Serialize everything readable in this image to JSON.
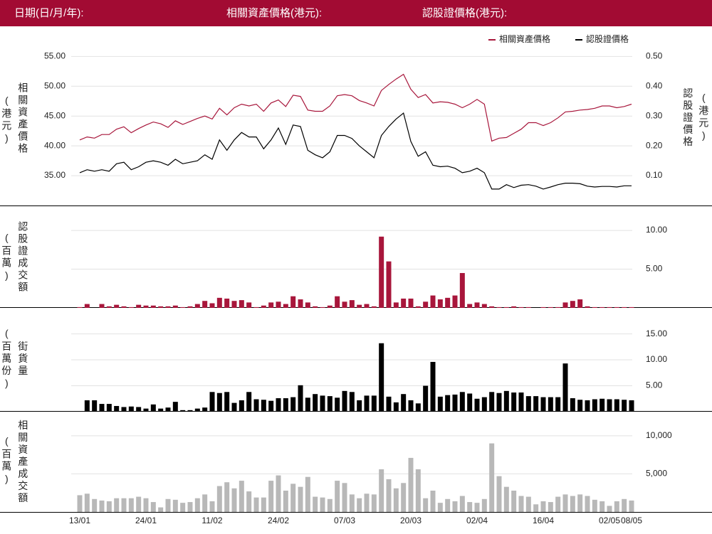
{
  "header": [
    "日期(日/月/年):",
    "相關資產價格(港元):",
    "認股證價格(港元):"
  ],
  "chart_data": [
    {
      "type": "line",
      "grid": true,
      "legend": "top-right",
      "ylabel": "相關資產價格",
      "ylabel_unit": "(港元)",
      "y2label": "認股證價格",
      "y2label_unit": "(港元)",
      "ylim": [
        30,
        56
      ],
      "yticks": [
        {
          "value": 35,
          "label": "35.00"
        },
        {
          "value": 40,
          "label": "40.00"
        },
        {
          "value": 45,
          "label": "45.00"
        },
        {
          "value": 50,
          "label": "50.00"
        },
        {
          "value": 55,
          "label": "55.00"
        }
      ],
      "y2lim": [
        0,
        0.52
      ],
      "y2ticks": [
        {
          "value": 0.1,
          "label": "0.10"
        },
        {
          "value": 0.2,
          "label": "0.20"
        },
        {
          "value": 0.3,
          "label": "0.30"
        },
        {
          "value": 0.4,
          "label": "0.40"
        },
        {
          "value": 0.5,
          "label": "0.50"
        }
      ],
      "series": [
        {
          "name": "相關資產價格",
          "color": "#a8173c",
          "values": [
            41.0,
            41.5,
            41.3,
            41.9,
            41.9,
            42.8,
            43.2,
            42.2,
            42.9,
            43.5,
            44.0,
            43.7,
            43.1,
            44.2,
            43.6,
            44.1,
            44.6,
            45.0,
            44.5,
            46.3,
            45.2,
            46.4,
            47.0,
            46.7,
            47.0,
            45.8,
            47.2,
            47.7,
            46.6,
            48.5,
            48.3,
            46.0,
            45.8,
            45.8,
            46.7,
            48.4,
            48.6,
            48.4,
            47.6,
            47.2,
            46.7,
            49.3,
            50.3,
            51.2,
            52.0,
            49.5,
            48.1,
            48.6,
            47.2,
            47.4,
            47.3,
            47.0,
            46.4,
            47.0,
            47.8,
            47.0,
            40.8,
            41.3,
            41.4,
            42.1,
            42.8,
            43.9,
            43.9,
            43.4,
            43.9,
            44.7,
            45.7,
            45.8,
            46.0,
            46.1,
            46.3,
            46.7,
            46.7,
            46.4,
            46.6,
            47.0
          ]
        },
        {
          "name": "認股證價格",
          "color": "#000000",
          "axis": "y2",
          "values": [
            0.11,
            0.12,
            0.115,
            0.12,
            0.115,
            0.14,
            0.145,
            0.12,
            0.13,
            0.145,
            0.15,
            0.145,
            0.135,
            0.155,
            0.14,
            0.145,
            0.15,
            0.17,
            0.155,
            0.22,
            0.185,
            0.22,
            0.245,
            0.23,
            0.23,
            0.19,
            0.22,
            0.26,
            0.205,
            0.27,
            0.265,
            0.185,
            0.17,
            0.16,
            0.18,
            0.235,
            0.235,
            0.225,
            0.2,
            0.18,
            0.16,
            0.235,
            0.265,
            0.29,
            0.31,
            0.215,
            0.165,
            0.18,
            0.135,
            0.13,
            0.132,
            0.125,
            0.11,
            0.115,
            0.125,
            0.11,
            0.055,
            0.055,
            0.07,
            0.06,
            0.068,
            0.07,
            0.065,
            0.055,
            0.062,
            0.07,
            0.075,
            0.075,
            0.073,
            0.065,
            0.062,
            0.064,
            0.064,
            0.062,
            0.066,
            0.066
          ]
        }
      ]
    },
    {
      "type": "bar",
      "grid": true,
      "color": "#a8163b",
      "ylabel": "認股證成交額",
      "ylabel_unit": "(百萬)",
      "ylim": [
        0,
        11.2
      ],
      "yticks": [
        {
          "value": 5,
          "label": "5.00"
        },
        {
          "value": 10,
          "label": "10.00"
        }
      ],
      "values": [
        0.1,
        0.5,
        0,
        0.5,
        0.2,
        0.4,
        0.2,
        0.1,
        0.4,
        0.3,
        0.3,
        0.2,
        0.2,
        0.3,
        0.1,
        0.2,
        0.5,
        0.9,
        0.6,
        1.3,
        1.2,
        0.9,
        1.0,
        0.7,
        0.1,
        0.3,
        0.7,
        0.8,
        0.5,
        1.5,
        1.1,
        0.7,
        0.2,
        0.1,
        0.3,
        1.5,
        0.8,
        1.0,
        0.4,
        0.5,
        0.2,
        9.2,
        6.0,
        0.7,
        1.2,
        1.2,
        0.2,
        0.8,
        1.6,
        1.1,
        1.3,
        1.6,
        4.5,
        0.5,
        0.7,
        0.5,
        0.2,
        0.1,
        0.1,
        0.2,
        0.1,
        0.1,
        0,
        0.1,
        0.1,
        0.1,
        0.7,
        0.9,
        1.1,
        0.2,
        0.1,
        0.1,
        0.1,
        0.1,
        0.1,
        0.1
      ]
    },
    {
      "type": "bar",
      "grid": true,
      "color": "#000000",
      "ylabel": "街貨量",
      "ylabel_unit": "(百萬份)",
      "ylim": [
        0,
        17
      ],
      "yticks": [
        {
          "value": 5,
          "label": "5.00"
        },
        {
          "value": 10,
          "label": "10.00"
        },
        {
          "value": 15,
          "label": "15.00"
        }
      ],
      "values": [
        0,
        2.2,
        2.2,
        1.5,
        1.5,
        1.1,
        0.9,
        1.0,
        0.9,
        0.6,
        1.4,
        0.6,
        0.8,
        1.9,
        0.3,
        0.3,
        0.6,
        0.8,
        3.8,
        3.6,
        3.8,
        1.7,
        2.2,
        3.8,
        2.4,
        2.3,
        2.1,
        2.6,
        2.6,
        2.8,
        5.1,
        2.7,
        3.4,
        3.1,
        3.0,
        2.7,
        4.0,
        3.8,
        2.2,
        3.1,
        3.1,
        13.2,
        2.9,
        1.8,
        3.4,
        2.2,
        1.6,
        5.0,
        9.6,
        2.9,
        3.2,
        3.3,
        3.8,
        3.5,
        2.5,
        2.8,
        3.8,
        3.6,
        4.0,
        3.7,
        3.7,
        3.0,
        3.0,
        2.8,
        2.8,
        2.8,
        9.3,
        2.6,
        2.3,
        2.2,
        2.4,
        2.5,
        2.4,
        2.4,
        2.3,
        2.2
      ]
    },
    {
      "type": "bar",
      "grid": true,
      "color": "#b8b8b8",
      "ylabel": "相關資產成交額",
      "ylabel_unit": "(百萬)",
      "ylim": [
        0,
        11200
      ],
      "yticks": [
        {
          "value": 5000,
          "label": "5,000"
        },
        {
          "value": 10000,
          "label": "10,000"
        }
      ],
      "categories": [
        "13/01",
        null,
        null,
        null,
        null,
        null,
        null,
        null,
        null,
        "24/01",
        null,
        null,
        null,
        null,
        null,
        null,
        null,
        null,
        "11/02",
        null,
        null,
        null,
        null,
        null,
        null,
        null,
        null,
        "24/02",
        null,
        null,
        null,
        null,
        null,
        null,
        null,
        null,
        "07/03",
        null,
        null,
        null,
        null,
        null,
        null,
        null,
        null,
        "20/03",
        null,
        null,
        null,
        null,
        null,
        null,
        null,
        null,
        "02/04",
        null,
        null,
        null,
        null,
        null,
        null,
        null,
        null,
        "16/04",
        null,
        null,
        null,
        null,
        null,
        null,
        null,
        null,
        "02/05",
        null,
        null,
        "08/05"
      ],
      "values": [
        2200,
        2400,
        1700,
        1500,
        1400,
        1800,
        1800,
        1800,
        2000,
        1800,
        1300,
        600,
        1700,
        1600,
        1200,
        1300,
        1800,
        2300,
        1400,
        3400,
        3900,
        3100,
        4100,
        2700,
        1900,
        1900,
        4100,
        4800,
        2800,
        3700,
        3300,
        4600,
        2000,
        1900,
        1700,
        4100,
        3800,
        2300,
        1800,
        2400,
        2300,
        5600,
        4300,
        3100,
        3800,
        7100,
        5600,
        1800,
        2800,
        1200,
        1700,
        1400,
        2100,
        1300,
        1200,
        1700,
        9000,
        4700,
        3300,
        2800,
        2100,
        2000,
        1000,
        1400,
        1300,
        2000,
        2300,
        2100,
        2300,
        2100,
        1600,
        1400,
        800,
        1400,
        1700,
        1500
      ]
    }
  ]
}
